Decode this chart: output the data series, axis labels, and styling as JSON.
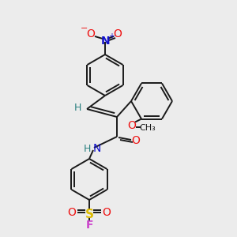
{
  "bg": "#ececec",
  "bond_color": "#1a1a1a",
  "lw": 1.4,
  "colors": {
    "N": "#1111cc",
    "O": "#ee1111",
    "S": "#ddbb00",
    "F": "#cc44cc",
    "H": "#2a8080",
    "C": "#1a1a1a"
  },
  "fontsize": 9.5
}
